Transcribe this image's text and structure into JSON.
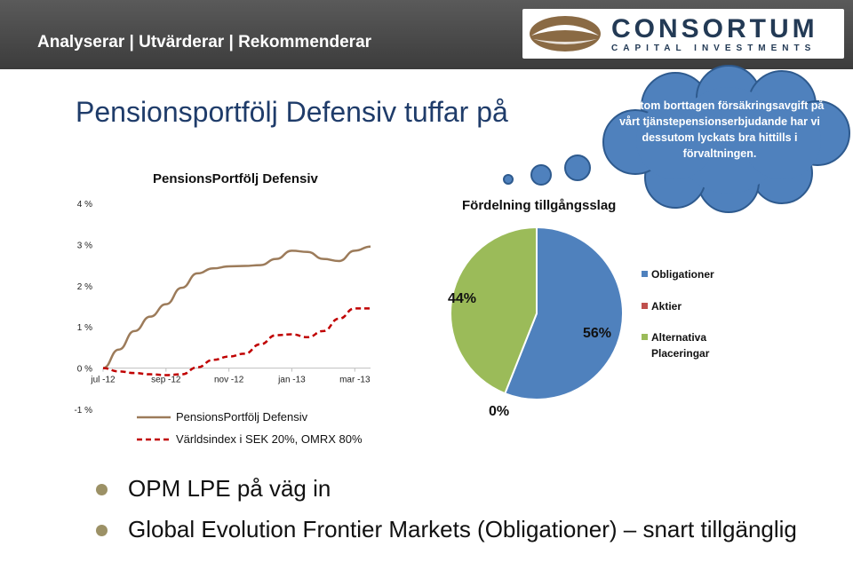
{
  "header": {
    "tagline": "Analyserar | Utvärderar | Rekommenderar",
    "logo_word": "CONSORTUM",
    "logo_sub": "CAPITAL INVESTMENTS"
  },
  "slide": {
    "title": "Pensionsportfölj Defensiv tuffar på"
  },
  "thought_bubble": {
    "text": "Förutom borttagen försäkringsavgift på vårt tjänstepensionserbjudande har vi dessutom lyckats bra hittills i förvaltningen."
  },
  "bullets": [
    {
      "text": "OPM LPE på väg in"
    },
    {
      "text": "Global Evolution Frontier Markets (Obligationer) – snart tillgänglig"
    }
  ],
  "colors": {
    "banner": "#4a4a4a",
    "title": "#1f3c6a",
    "cloud": "#4f81bd",
    "portfolio_line": "#9c7b5a",
    "index_line": "#c00000",
    "pie_obligationer": "#4f81bd",
    "pie_aktier": "#c0504d",
    "pie_alternativa": "#9bbb59"
  },
  "chart_data": [
    {
      "type": "line",
      "title": "PensionsPortfölj Defensiv",
      "x_tick_labels": [
        "jul -12",
        "sep -12",
        "nov -12",
        "jan -13",
        "mar -13"
      ],
      "x": [
        0,
        0.5,
        1,
        1.5,
        2,
        2.5,
        3,
        3.5,
        4,
        4.5,
        5,
        5.5,
        6,
        6.5,
        7,
        7.5,
        8,
        8.5
      ],
      "ylim": [
        -1,
        4
      ],
      "y_tick_labels": [
        "-1 %",
        "0 %",
        "1 %",
        "2 %",
        "3 %",
        "4 %"
      ],
      "y_ticks": [
        -1,
        0,
        1,
        2,
        3,
        4
      ],
      "legend_position": "bottom",
      "series": [
        {
          "name": "PensionsPortfölj Defensiv",
          "style": "solid",
          "values": [
            0,
            0.45,
            0.9,
            1.25,
            1.55,
            1.95,
            2.3,
            2.42,
            2.47,
            2.48,
            2.5,
            2.65,
            2.85,
            2.82,
            2.65,
            2.6,
            2.85,
            2.95
          ]
        },
        {
          "name": "Världsindex i SEK 20%, OMRX 80%",
          "style": "dashed",
          "values": [
            0,
            -0.08,
            -0.12,
            -0.15,
            -0.17,
            -0.15,
            0.02,
            0.2,
            0.28,
            0.35,
            0.58,
            0.8,
            0.82,
            0.75,
            0.9,
            1.2,
            1.45,
            1.45
          ]
        }
      ]
    },
    {
      "type": "pie",
      "title": "Fördelning tillgångsslag",
      "legend_position": "right",
      "slices": [
        {
          "name": "Obligationer",
          "value": 56,
          "label": "56%"
        },
        {
          "name": "Aktier",
          "value": 0,
          "label": "0%"
        },
        {
          "name": "Alternativa Placeringar",
          "value": 44,
          "label": "44%"
        }
      ]
    }
  ]
}
